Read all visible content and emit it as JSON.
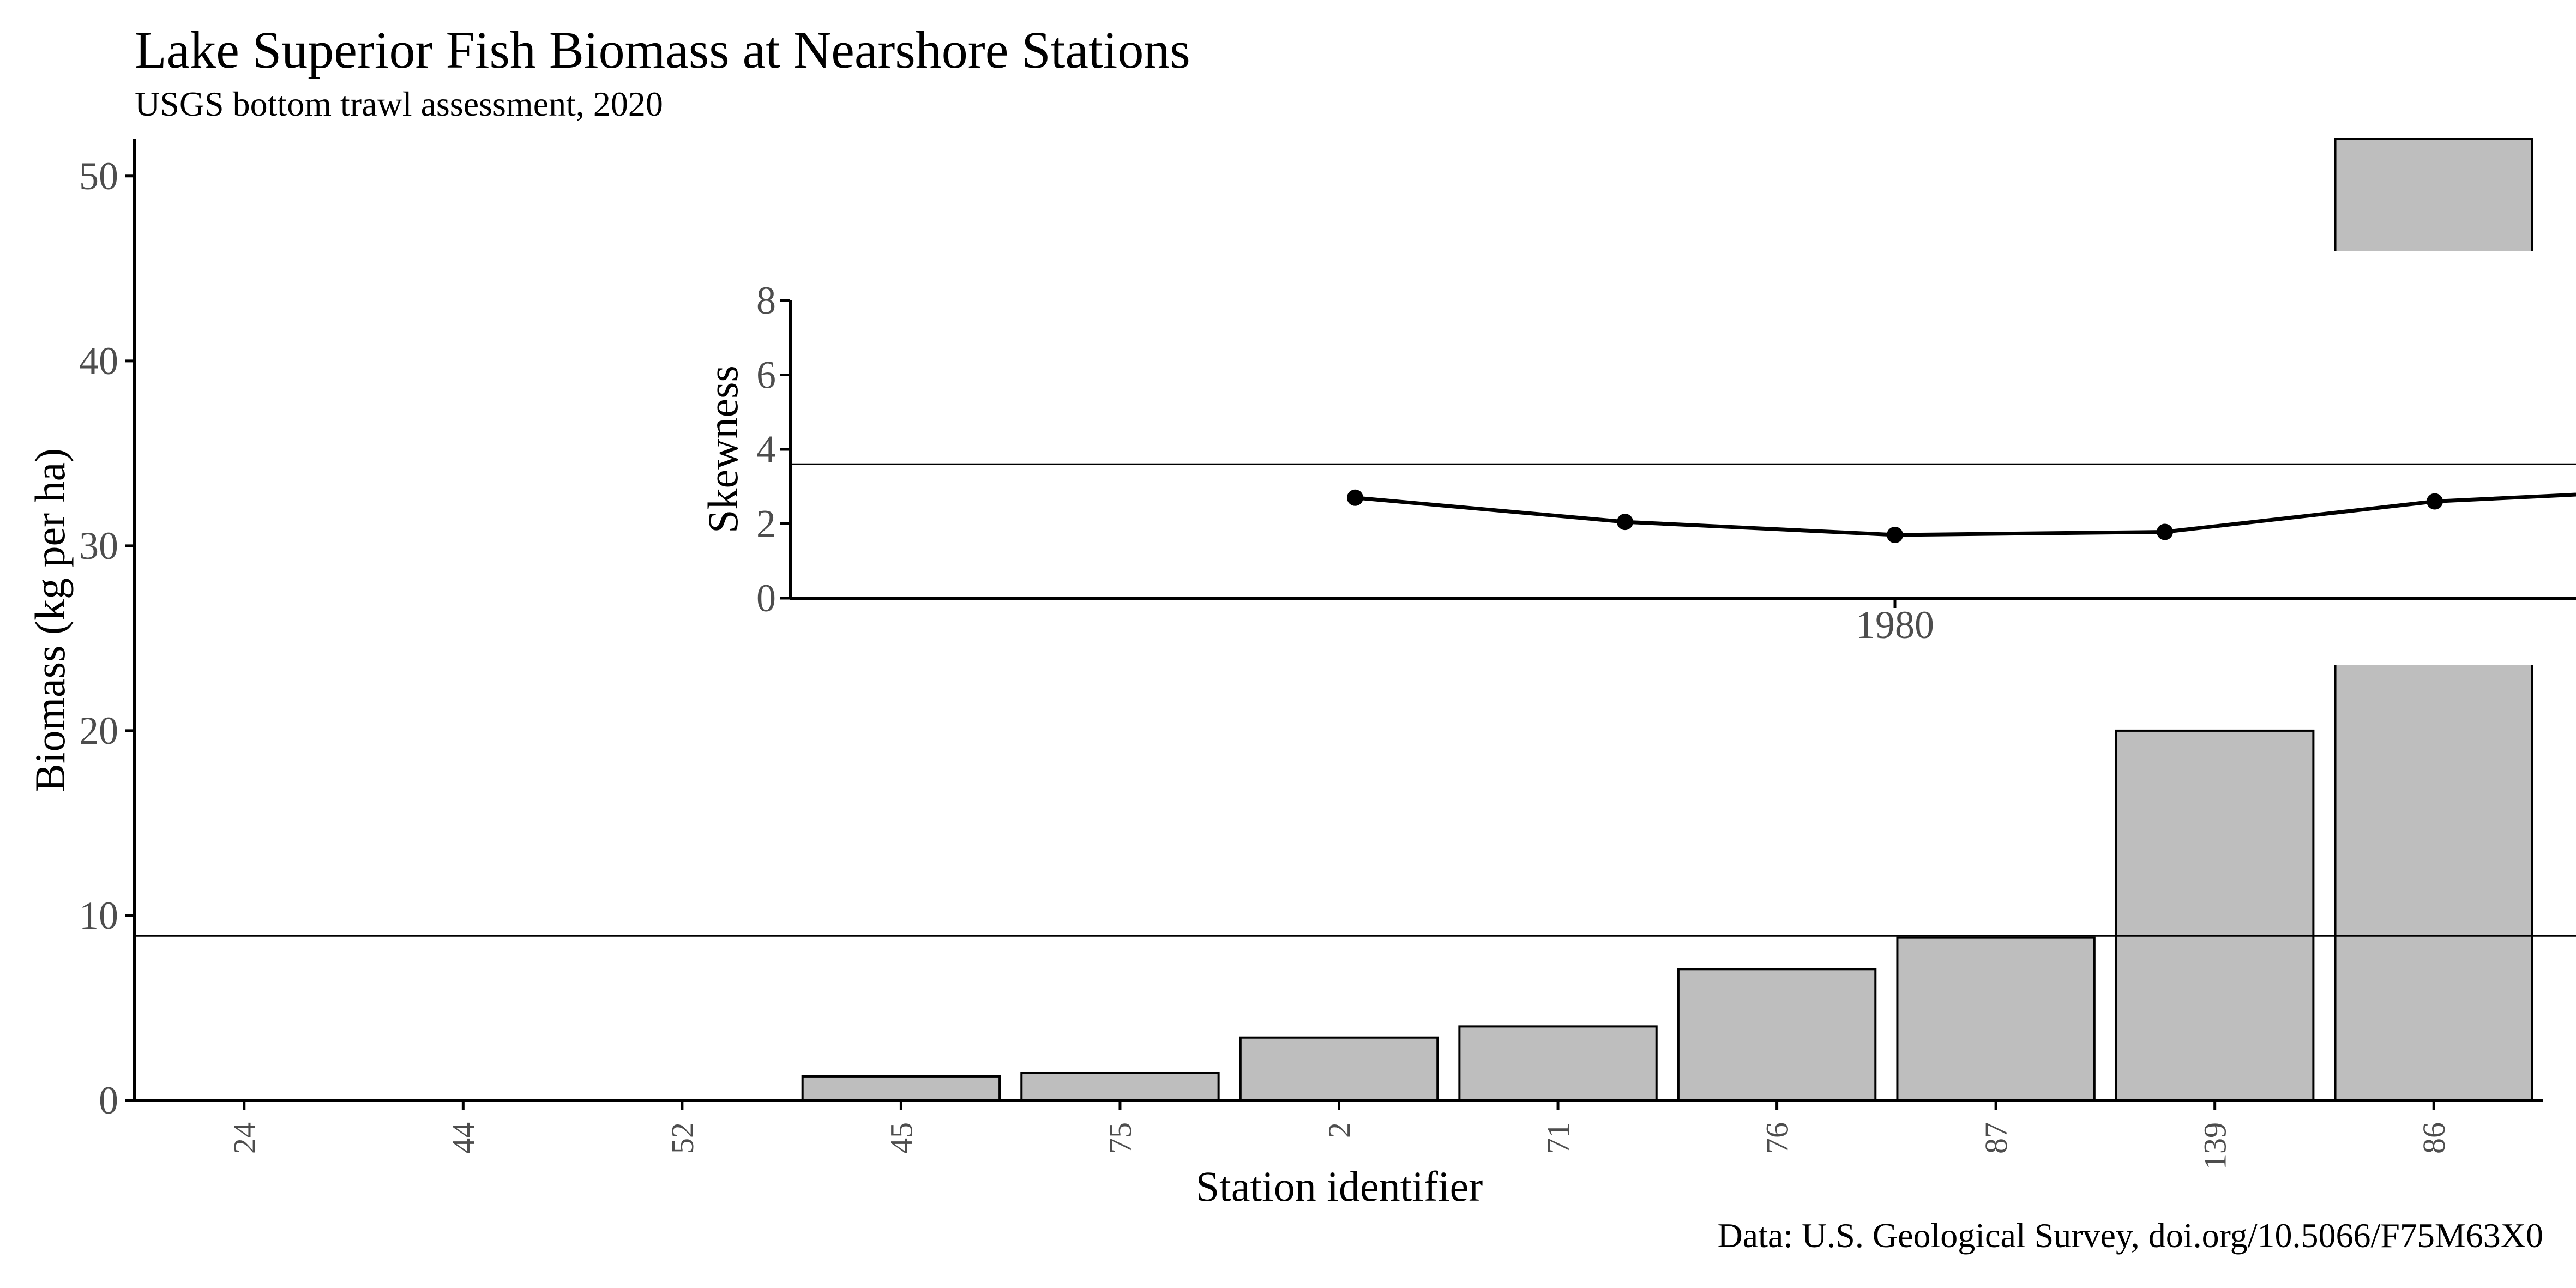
{
  "chart_data": {
    "type": "bar",
    "title": "Lake Superior Fish Biomass at Nearshore Stations",
    "subtitle": "USGS bottom trawl assessment, 2020",
    "caption": "Data: U.S. Geological Survey, doi.org/10.5066/F75M63X0",
    "xlabel": "Station identifier",
    "ylabel": "Biomass (kg per ha)",
    "ylim": [
      0,
      52
    ],
    "yticks": [
      0,
      10,
      20,
      30,
      40,
      50
    ],
    "categories": [
      "24",
      "44",
      "52",
      "45",
      "75",
      "2",
      "71",
      "76",
      "87",
      "139",
      "86"
    ],
    "values": [
      0,
      0,
      0,
      1.3,
      1.5,
      3.4,
      4.0,
      7.1,
      8.8,
      20,
      52
    ],
    "reference_line": 8.9,
    "bar_color": "#bebebe",
    "bar_outline": "#000000",
    "grid": false,
    "inset": {
      "type": "line",
      "ylabel": "Skewness",
      "ylim": [
        0,
        8
      ],
      "yticks": [
        0,
        2,
        4,
        6,
        8
      ],
      "xtick_label": "1980",
      "x": [
        1,
        2,
        3,
        4,
        5,
        6
      ],
      "values": [
        2.7,
        2.05,
        1.7,
        1.78,
        2.6,
        2.95
      ],
      "reference_line": 3.6
    }
  }
}
